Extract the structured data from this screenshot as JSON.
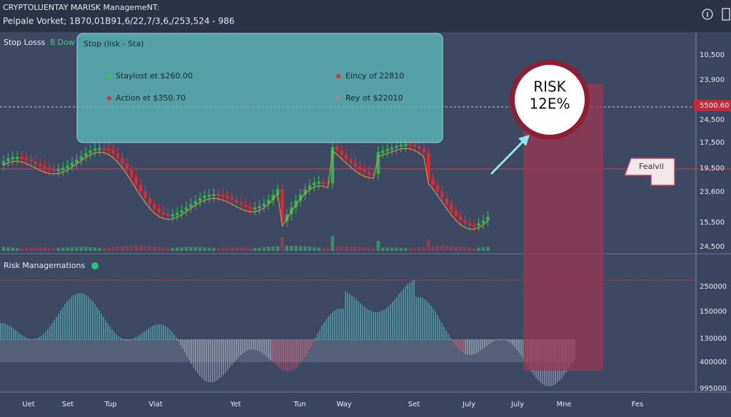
{
  "header": {
    "title": "CRYPTOLUENTAY MARISK ManagemeNT:",
    "subtitle": "Peipale Vorket; 1B70,01B91,6/22,7/3,6,/253,524 - 986"
  },
  "price_panel": {
    "label": "Stop Losss",
    "label_tag": "8 Dow",
    "info_box": {
      "title": "Stop (Iisk - Sta)",
      "items": [
        "Staylost et $260.00",
        "Action et $350.70",
        "Eincy of 22810",
        "Rey ot $22010"
      ]
    },
    "risk_badge": {
      "line1": "RISK",
      "line2": "12E%"
    },
    "tag": "Fealvil",
    "axis_labels": [
      "10,500",
      "23,900",
      "5500.60",
      "24,500",
      "17,500",
      "19,500",
      "23,600",
      "15,500",
      "24,500"
    ]
  },
  "risk_panel": {
    "title": "Risk Managemations",
    "axis_labels": [
      "250000",
      "150000",
      "130000",
      "400000",
      "995000"
    ]
  },
  "x_labels": [
    "Uet",
    "Set",
    "Tup",
    "Viat",
    "Yet",
    "Tun",
    "Way",
    "Set",
    "July",
    "July",
    "Mne",
    "Fes"
  ]
}
